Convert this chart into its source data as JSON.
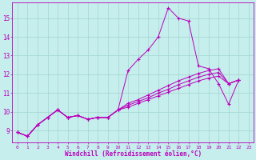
{
  "xlabel": "Windchill (Refroidissement éolien,°C)",
  "background_color": "#c5eeed",
  "grid_color": "#a3d5d0",
  "line_color": "#bb00bb",
  "x_ticks": [
    0,
    1,
    2,
    3,
    4,
    5,
    6,
    7,
    8,
    9,
    10,
    11,
    12,
    13,
    14,
    15,
    16,
    17,
    18,
    19,
    20,
    21,
    22,
    23
  ],
  "y_ticks": [
    9,
    10,
    11,
    12,
    13,
    14,
    15
  ],
  "ylim": [
    8.35,
    15.85
  ],
  "xlim": [
    -0.5,
    23.5
  ],
  "series": [
    [
      8.9,
      8.7,
      9.3,
      9.7,
      10.1,
      9.7,
      9.8,
      9.6,
      9.7,
      9.7,
      10.1,
      12.2,
      12.8,
      13.3,
      14.0,
      15.55,
      15.0,
      14.85,
      12.45,
      12.3,
      11.5,
      10.4,
      11.7,
      null
    ],
    [
      8.9,
      8.7,
      9.3,
      9.7,
      10.1,
      9.7,
      9.8,
      9.6,
      9.7,
      9.7,
      10.1,
      10.45,
      10.65,
      10.9,
      11.15,
      11.4,
      11.65,
      11.85,
      12.05,
      12.2,
      12.3,
      11.5,
      11.7,
      null
    ],
    [
      8.9,
      8.7,
      9.3,
      9.7,
      10.1,
      9.7,
      9.8,
      9.6,
      9.7,
      9.7,
      10.1,
      10.35,
      10.55,
      10.75,
      11.0,
      11.2,
      11.45,
      11.65,
      11.85,
      12.0,
      12.1,
      11.5,
      11.7,
      null
    ],
    [
      8.9,
      8.7,
      9.3,
      9.7,
      10.1,
      9.7,
      9.8,
      9.6,
      9.7,
      9.7,
      10.1,
      10.25,
      10.45,
      10.65,
      10.85,
      11.05,
      11.25,
      11.45,
      11.65,
      11.8,
      11.9,
      11.5,
      11.7,
      null
    ]
  ]
}
